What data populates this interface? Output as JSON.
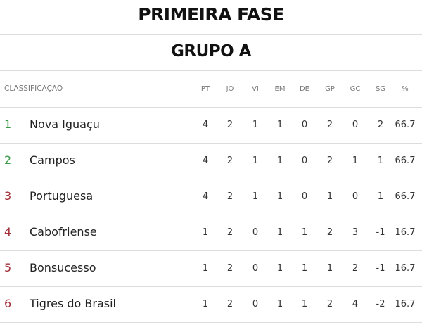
{
  "phase_title": "PRIMEIRA FASE",
  "group_title": "GRUPO A",
  "table": {
    "classification_label": "CLASSIFICAÇÃO",
    "columns": [
      "PT",
      "JO",
      "VI",
      "EM",
      "DE",
      "GP",
      "GC",
      "SG",
      "%"
    ],
    "rows": [
      {
        "rank": "1",
        "team": "Nova Iguaçu",
        "rank_color": "#3a9a4a",
        "stats": [
          "4",
          "2",
          "1",
          "1",
          "0",
          "2",
          "0",
          "2",
          "66.7"
        ]
      },
      {
        "rank": "2",
        "team": "Campos",
        "rank_color": "#3a9a4a",
        "stats": [
          "4",
          "2",
          "1",
          "1",
          "0",
          "2",
          "1",
          "1",
          "66.7"
        ]
      },
      {
        "rank": "3",
        "team": "Portuguesa",
        "rank_color": "#a3303a",
        "stats": [
          "4",
          "2",
          "1",
          "1",
          "0",
          "1",
          "0",
          "1",
          "66.7"
        ]
      },
      {
        "rank": "4",
        "team": "Cabofriense",
        "rank_color": "#a3303a",
        "stats": [
          "1",
          "2",
          "0",
          "1",
          "1",
          "2",
          "3",
          "-1",
          "16.7"
        ]
      },
      {
        "rank": "5",
        "team": "Bonsucesso",
        "rank_color": "#a3303a",
        "stats": [
          "1",
          "2",
          "0",
          "1",
          "1",
          "1",
          "2",
          "-1",
          "16.7"
        ]
      },
      {
        "rank": "6",
        "team": "Tigres do Brasil",
        "rank_color": "#a3303a",
        "stats": [
          "1",
          "2",
          "0",
          "1",
          "1",
          "2",
          "4",
          "-2",
          "16.7"
        ]
      }
    ]
  }
}
